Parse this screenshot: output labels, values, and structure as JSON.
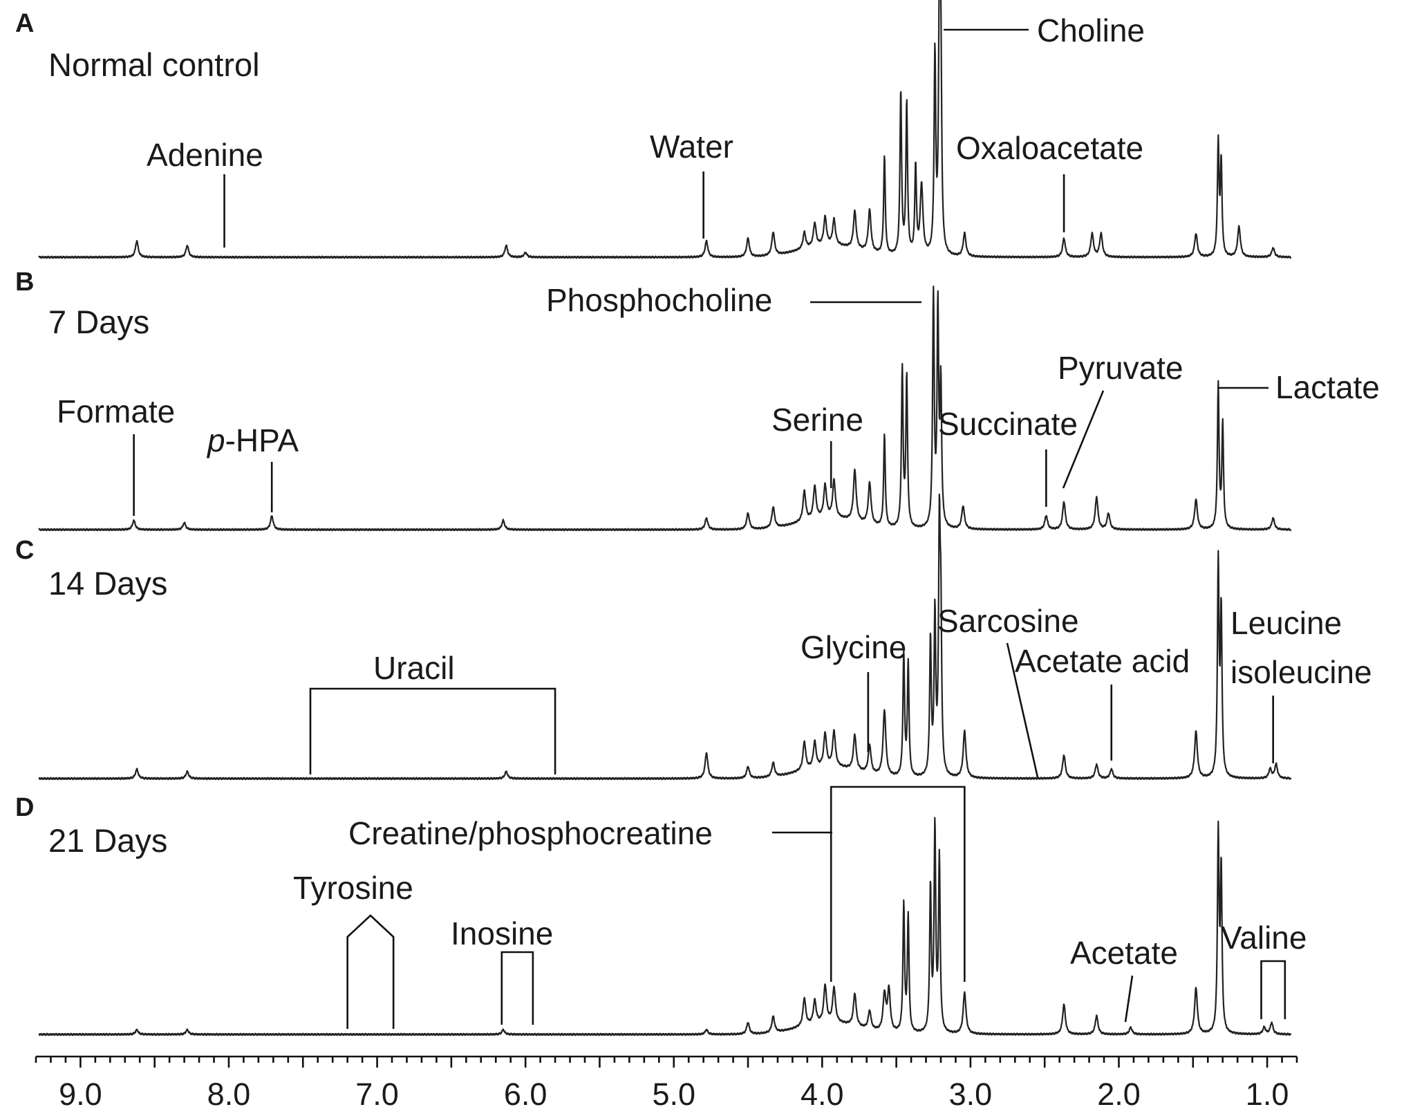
{
  "chart_data": {
    "type": "line",
    "title": "",
    "xlabel": "",
    "ylabel": "",
    "x_axis": {
      "min": 9.3,
      "max": 0.8,
      "reversed": true,
      "ticks": [
        9.0,
        8.0,
        7.0,
        6.0,
        5.0,
        4.0,
        3.0,
        2.0,
        1.0
      ],
      "tick_labels": [
        "9.0",
        "8.0",
        "7.0",
        "6.0",
        "5.0",
        "4.0",
        "3.0",
        "2.0",
        "1.0"
      ],
      "minor_step": 0.1
    },
    "panels": [
      {
        "letter": "A",
        "condition": "Normal control",
        "peaks": [
          [
            8.62,
            0.07
          ],
          [
            8.28,
            0.05
          ],
          [
            6.13,
            0.05
          ],
          [
            6.0,
            0.02
          ],
          [
            4.78,
            0.07
          ],
          [
            4.5,
            0.08
          ],
          [
            4.33,
            0.1
          ],
          [
            4.12,
            0.07
          ],
          [
            4.05,
            0.1
          ],
          [
            3.98,
            0.12
          ],
          [
            3.92,
            0.11
          ],
          [
            3.78,
            0.16
          ],
          [
            3.68,
            0.18
          ],
          [
            3.58,
            0.42
          ],
          [
            3.47,
            0.7
          ],
          [
            3.43,
            0.65
          ],
          [
            3.37,
            0.38
          ],
          [
            3.33,
            0.3
          ],
          [
            3.24,
            0.85
          ],
          [
            3.21,
            1.0
          ],
          [
            3.2,
            0.8
          ],
          [
            3.04,
            0.1
          ],
          [
            2.37,
            0.08
          ],
          [
            2.18,
            0.1
          ],
          [
            2.12,
            0.1
          ],
          [
            1.48,
            0.1
          ],
          [
            1.33,
            0.48
          ],
          [
            1.31,
            0.4
          ],
          [
            1.19,
            0.13
          ],
          [
            0.96,
            0.04
          ]
        ],
        "annotations": [
          {
            "label": "Choline",
            "ppm": 3.21
          },
          {
            "label": "Adenine",
            "ppm": 8.03
          },
          {
            "label": "Water",
            "ppm": 4.8
          },
          {
            "label": "Oxaloacetate",
            "ppm": 2.37
          }
        ]
      },
      {
        "letter": "B",
        "condition": "7 Days",
        "peaks": [
          [
            8.64,
            0.04
          ],
          [
            8.3,
            0.03
          ],
          [
            7.71,
            0.06
          ],
          [
            6.15,
            0.04
          ],
          [
            4.78,
            0.05
          ],
          [
            4.5,
            0.07
          ],
          [
            4.33,
            0.09
          ],
          [
            4.12,
            0.13
          ],
          [
            4.05,
            0.14
          ],
          [
            3.98,
            0.14
          ],
          [
            3.92,
            0.16
          ],
          [
            3.78,
            0.22
          ],
          [
            3.68,
            0.18
          ],
          [
            3.58,
            0.4
          ],
          [
            3.46,
            0.68
          ],
          [
            3.43,
            0.65
          ],
          [
            3.25,
            1.0
          ],
          [
            3.22,
            0.93
          ],
          [
            3.2,
            0.6
          ],
          [
            3.05,
            0.1
          ],
          [
            2.49,
            0.06
          ],
          [
            2.37,
            0.12
          ],
          [
            2.15,
            0.14
          ],
          [
            2.07,
            0.07
          ],
          [
            1.48,
            0.13
          ],
          [
            1.33,
            0.62
          ],
          [
            1.3,
            0.45
          ],
          [
            0.96,
            0.05
          ]
        ],
        "annotations": [
          {
            "label": "Phosphocholine",
            "ppm": 3.23
          },
          {
            "label": "Formate",
            "ppm": 8.64
          },
          {
            "label": "p-HPA",
            "ppm": 7.71
          },
          {
            "label": "Serine",
            "ppm": 3.94
          },
          {
            "label": "Succinate",
            "ppm": 2.49
          },
          {
            "label": "Pyruvate",
            "ppm": 2.37
          },
          {
            "label": "Lactate",
            "ppm": 1.33
          }
        ]
      },
      {
        "letter": "C",
        "condition": "14 Days",
        "peaks": [
          [
            8.62,
            0.04
          ],
          [
            8.28,
            0.03
          ],
          [
            6.13,
            0.03
          ],
          [
            4.78,
            0.11
          ],
          [
            4.5,
            0.05
          ],
          [
            4.33,
            0.06
          ],
          [
            4.12,
            0.12
          ],
          [
            4.05,
            0.11
          ],
          [
            3.98,
            0.14
          ],
          [
            3.92,
            0.15
          ],
          [
            3.78,
            0.15
          ],
          [
            3.68,
            0.12
          ],
          [
            3.58,
            0.28
          ],
          [
            3.45,
            0.52
          ],
          [
            3.42,
            0.48
          ],
          [
            3.27,
            0.58
          ],
          [
            3.24,
            0.68
          ],
          [
            3.21,
            1.0
          ],
          [
            3.2,
            0.6
          ],
          [
            3.04,
            0.2
          ],
          [
            2.37,
            0.1
          ],
          [
            2.15,
            0.06
          ],
          [
            2.05,
            0.04
          ],
          [
            1.48,
            0.2
          ],
          [
            1.33,
            0.9
          ],
          [
            1.31,
            0.7
          ],
          [
            0.98,
            0.04
          ],
          [
            0.94,
            0.06
          ]
        ],
        "annotations": [
          {
            "label": "Uracil",
            "ppm_range": [
              7.45,
              5.8
            ]
          },
          {
            "label": "Glycine",
            "ppm": 3.69
          },
          {
            "label": "Sarcosine",
            "ppm": 2.57
          },
          {
            "label": "Acetate acid",
            "ppm": 2.05
          },
          {
            "label": "Leucine",
            "ppm": 0.96
          },
          {
            "label": "isoleucine",
            "ppm": 0.96
          }
        ]
      },
      {
        "letter": "D",
        "condition": "21 Days",
        "peaks": [
          [
            8.62,
            0.02
          ],
          [
            8.28,
            0.02
          ],
          [
            6.15,
            0.02
          ],
          [
            4.78,
            0.02
          ],
          [
            4.5,
            0.05
          ],
          [
            4.33,
            0.07
          ],
          [
            4.12,
            0.12
          ],
          [
            4.05,
            0.1
          ],
          [
            3.98,
            0.16
          ],
          [
            3.92,
            0.15
          ],
          [
            3.78,
            0.14
          ],
          [
            3.68,
            0.08
          ],
          [
            3.58,
            0.16
          ],
          [
            3.55,
            0.18
          ],
          [
            3.45,
            0.55
          ],
          [
            3.42,
            0.5
          ],
          [
            3.27,
            0.62
          ],
          [
            3.24,
            0.88
          ],
          [
            3.21,
            0.75
          ],
          [
            3.04,
            0.18
          ],
          [
            2.37,
            0.13
          ],
          [
            2.15,
            0.08
          ],
          [
            1.92,
            0.03
          ],
          [
            1.48,
            0.2
          ],
          [
            1.33,
            0.85
          ],
          [
            1.31,
            0.7
          ],
          [
            1.02,
            0.03
          ],
          [
            0.97,
            0.05
          ]
        ],
        "annotations": [
          {
            "label": "Creatine/phosphocreatine",
            "ppm_range": [
              3.94,
              3.04
            ]
          },
          {
            "label": "Tyrosine",
            "ppm_range": [
              7.2,
              6.89
            ]
          },
          {
            "label": "Inosine",
            "ppm_range": [
              6.16,
              5.95
            ]
          },
          {
            "label": "Acetate",
            "ppm": 1.92
          },
          {
            "label": "Valine",
            "ppm_range": [
              1.04,
              0.88
            ]
          }
        ]
      }
    ]
  }
}
